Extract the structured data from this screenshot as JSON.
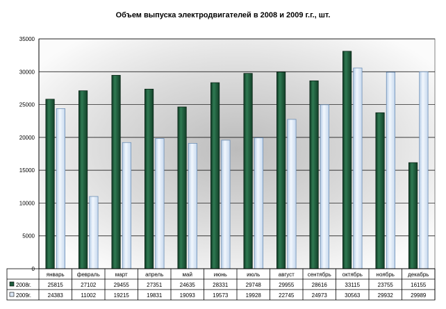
{
  "chart_data": {
    "type": "bar",
    "title": "Объем выпуска электродвигателей в 2008 и 2009 г.г., шт.",
    "categories": [
      "январь",
      "февраль",
      "март",
      "апрель",
      "май",
      "июнь",
      "июль",
      "август",
      "сентябрь",
      "октябрь",
      "ноябрь",
      "декабрь"
    ],
    "series": [
      {
        "name": "2008г.",
        "color": "#1e5c3c",
        "values": [
          25815,
          27102,
          29455,
          27351,
          24635,
          28331,
          29748,
          29955,
          28616,
          33115,
          23755,
          16155
        ],
        "labels": [
          "25815",
          "27102",
          "29455",
          "27351",
          "24635",
          "28331",
          "29748",
          "29955",
          "28616",
          "33115",
          "23755",
          "16155"
        ]
      },
      {
        "name": "2009г.",
        "color": "#dde9f7",
        "values": [
          24383,
          11002,
          19215,
          19831,
          19093,
          19573,
          19928,
          22745,
          24973,
          30563,
          29932,
          29989
        ],
        "labels": [
          "24383",
          "11002",
          "19215",
          "19831",
          "19093",
          "19573",
          "19928",
          "22745",
          "24973",
          "30563",
          "29932",
          "29989"
        ]
      }
    ],
    "ylim": [
      0,
      35000
    ],
    "yticks": [
      0,
      5000,
      10000,
      15000,
      20000,
      25000,
      30000,
      35000
    ],
    "ytick_labels": [
      "0",
      "5000",
      "10000",
      "15000",
      "20000",
      "25000",
      "30000",
      "35000"
    ],
    "grid": true,
    "legend": "in data table, left column"
  }
}
